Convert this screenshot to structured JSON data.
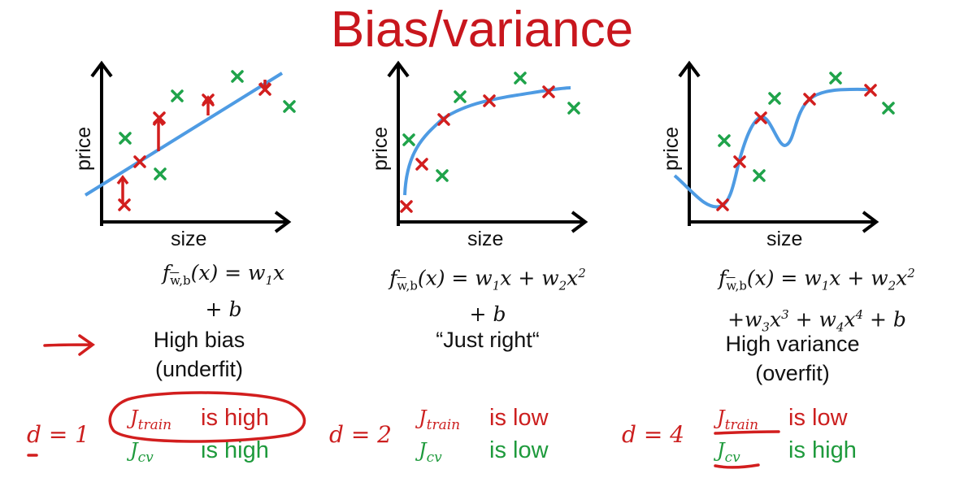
{
  "title": "Bias/variance",
  "colors": {
    "title": "#c8161d",
    "fit_curve": "#4e9be3",
    "train_point": "#d21e1e",
    "cv_point": "#1fa34a",
    "annotation": "#d21e1e"
  },
  "plots": [
    {
      "id": "underfit",
      "ylabel": "price",
      "xlabel": "size",
      "formula_line1": "f⃗w,b(x) = w₁x",
      "formula_line2": "+ b",
      "caption_line1": "High bias",
      "caption_line2": "(underfit)",
      "d_label": "d = 1",
      "j_train_label": "J_train",
      "j_train_status": "is high",
      "j_cv_label": "J_cv",
      "j_cv_status": "is high"
    },
    {
      "id": "just-right",
      "ylabel": "price",
      "xlabel": "size",
      "formula_line1": "f⃗w,b(x) = w₁x + w₂x²",
      "formula_line2": "+ b",
      "caption_line1": "“Just right“",
      "caption_line2": "",
      "d_label": "d = 2",
      "j_train_label": "J_train",
      "j_train_status": "is low",
      "j_cv_label": "J_cv",
      "j_cv_status": "is low"
    },
    {
      "id": "overfit",
      "ylabel": "price",
      "xlabel": "size",
      "formula_line1": "f⃗w,b(x) = w₁x + w₂x²",
      "formula_line2": "+w₃x³ + w₄x⁴ + b",
      "caption_line1": "High variance",
      "caption_line2": "(overfit)",
      "d_label": "d = 4",
      "j_train_label": "J_train",
      "j_train_status": "is low",
      "j_cv_label": "J_cv",
      "j_cv_status": "is high"
    }
  ],
  "formula_parts": {
    "f": "f",
    "sub": "w,b",
    "x1": "(x) = w",
    "rest1": "x",
    "plus_w2": " + w",
    "x2": "x",
    "plus_b": "+ b",
    "line2_overfit_a": "+w",
    "line2_overfit_b": "x",
    "line2_overfit_c": " + w",
    "line2_overfit_d": "x",
    "line2_overfit_e": " + b"
  }
}
